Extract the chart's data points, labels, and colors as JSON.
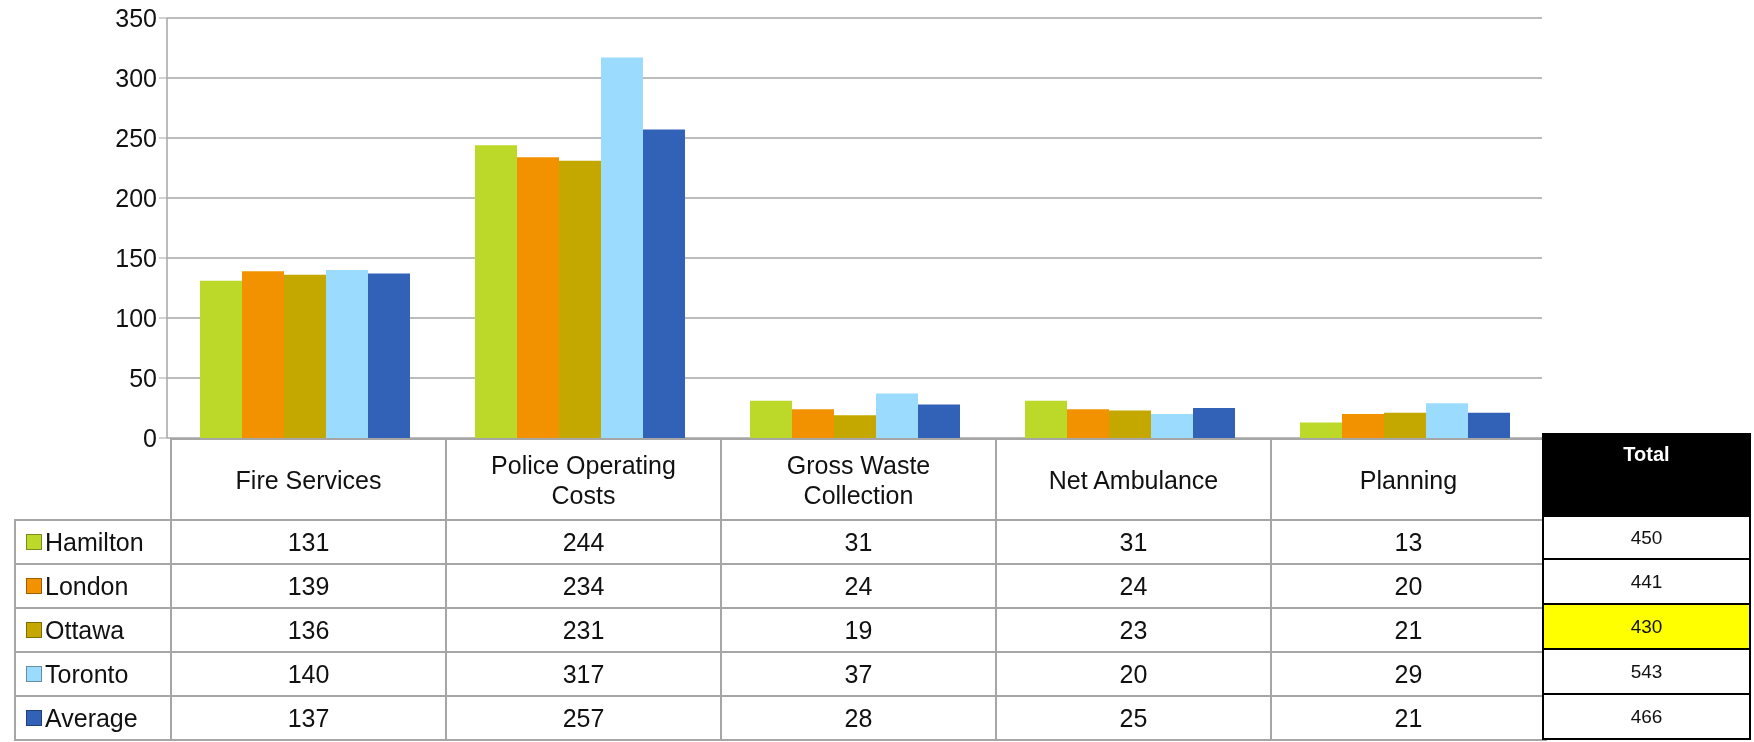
{
  "chart_data": {
    "type": "bar",
    "categories": [
      "Fire Services",
      "Police Operating Costs",
      "Gross Waste Collection",
      "Net Ambulance",
      "Planning"
    ],
    "series": [
      {
        "name": "Hamilton",
        "color": "#bcd929",
        "values": [
          131,
          244,
          31,
          31,
          13
        ]
      },
      {
        "name": "London",
        "color": "#f39200",
        "values": [
          139,
          234,
          24,
          24,
          20
        ]
      },
      {
        "name": "Ottawa",
        "color": "#c4a800",
        "values": [
          136,
          231,
          19,
          23,
          21
        ]
      },
      {
        "name": "Toronto",
        "color": "#9bdbfe",
        "values": [
          140,
          317,
          37,
          20,
          29
        ]
      },
      {
        "name": "Average",
        "color": "#3262b8",
        "values": [
          137,
          257,
          28,
          25,
          21
        ]
      }
    ],
    "ylim": [
      0,
      350
    ],
    "yticks": [
      0,
      50,
      100,
      150,
      200,
      250,
      300,
      350
    ],
    "grid": "y",
    "legend": "bottom left",
    "data_labels": true,
    "annotations": [
      "Total",
      "450",
      "441",
      "430",
      "543",
      "466"
    ]
  }
}
